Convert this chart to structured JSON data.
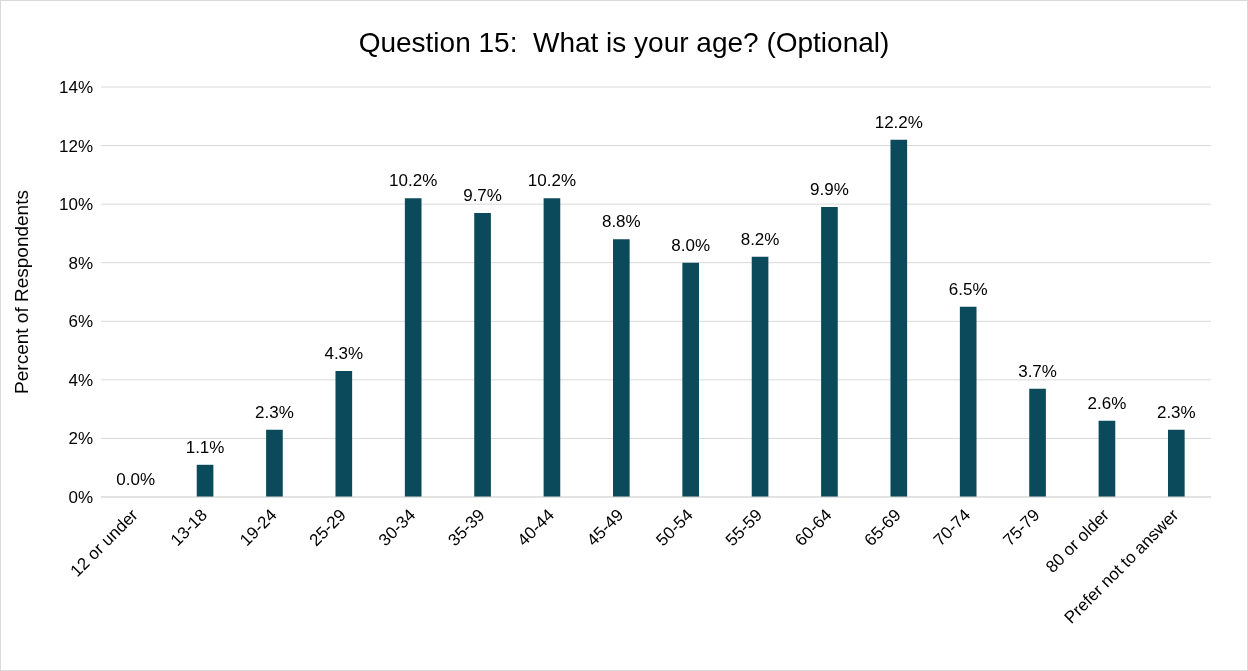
{
  "chart_data": {
    "type": "bar",
    "title": "Question 15:  What is your age? (Optional)",
    "ylabel": "Percent of Respondents",
    "categories": [
      "12 or under",
      "13-18",
      "19-24",
      "25-29",
      "30-34",
      "35-39",
      "40-44",
      "45-49",
      "50-54",
      "55-59",
      "60-64",
      "65-69",
      "70-74",
      "75-79",
      "80 or older",
      "Prefer not to answer"
    ],
    "values": [
      0.0,
      1.1,
      2.3,
      4.3,
      10.2,
      9.7,
      10.2,
      8.8,
      8.0,
      8.2,
      9.9,
      12.2,
      6.5,
      3.7,
      2.6,
      2.3
    ],
    "value_labels": [
      "0.0%",
      "1.1%",
      "2.3%",
      "4.3%",
      "10.2%",
      "9.7%",
      "10.2%",
      "8.8%",
      "8.0%",
      "8.2%",
      "9.9%",
      "12.2%",
      "6.5%",
      "3.7%",
      "2.6%",
      "2.3%"
    ],
    "color": "#0b4a5a",
    "ylim": [
      0,
      14
    ],
    "yticks": [
      {
        "value": 0,
        "label": "0%"
      },
      {
        "value": 2,
        "label": "2%"
      },
      {
        "value": 4,
        "label": "4%"
      },
      {
        "value": 6,
        "label": "6%"
      },
      {
        "value": 8,
        "label": "8%"
      },
      {
        "value": 10,
        "label": "10%"
      },
      {
        "value": 12,
        "label": "12%"
      },
      {
        "value": 14,
        "label": "14%"
      }
    ],
    "grid": "y",
    "legend": false
  }
}
